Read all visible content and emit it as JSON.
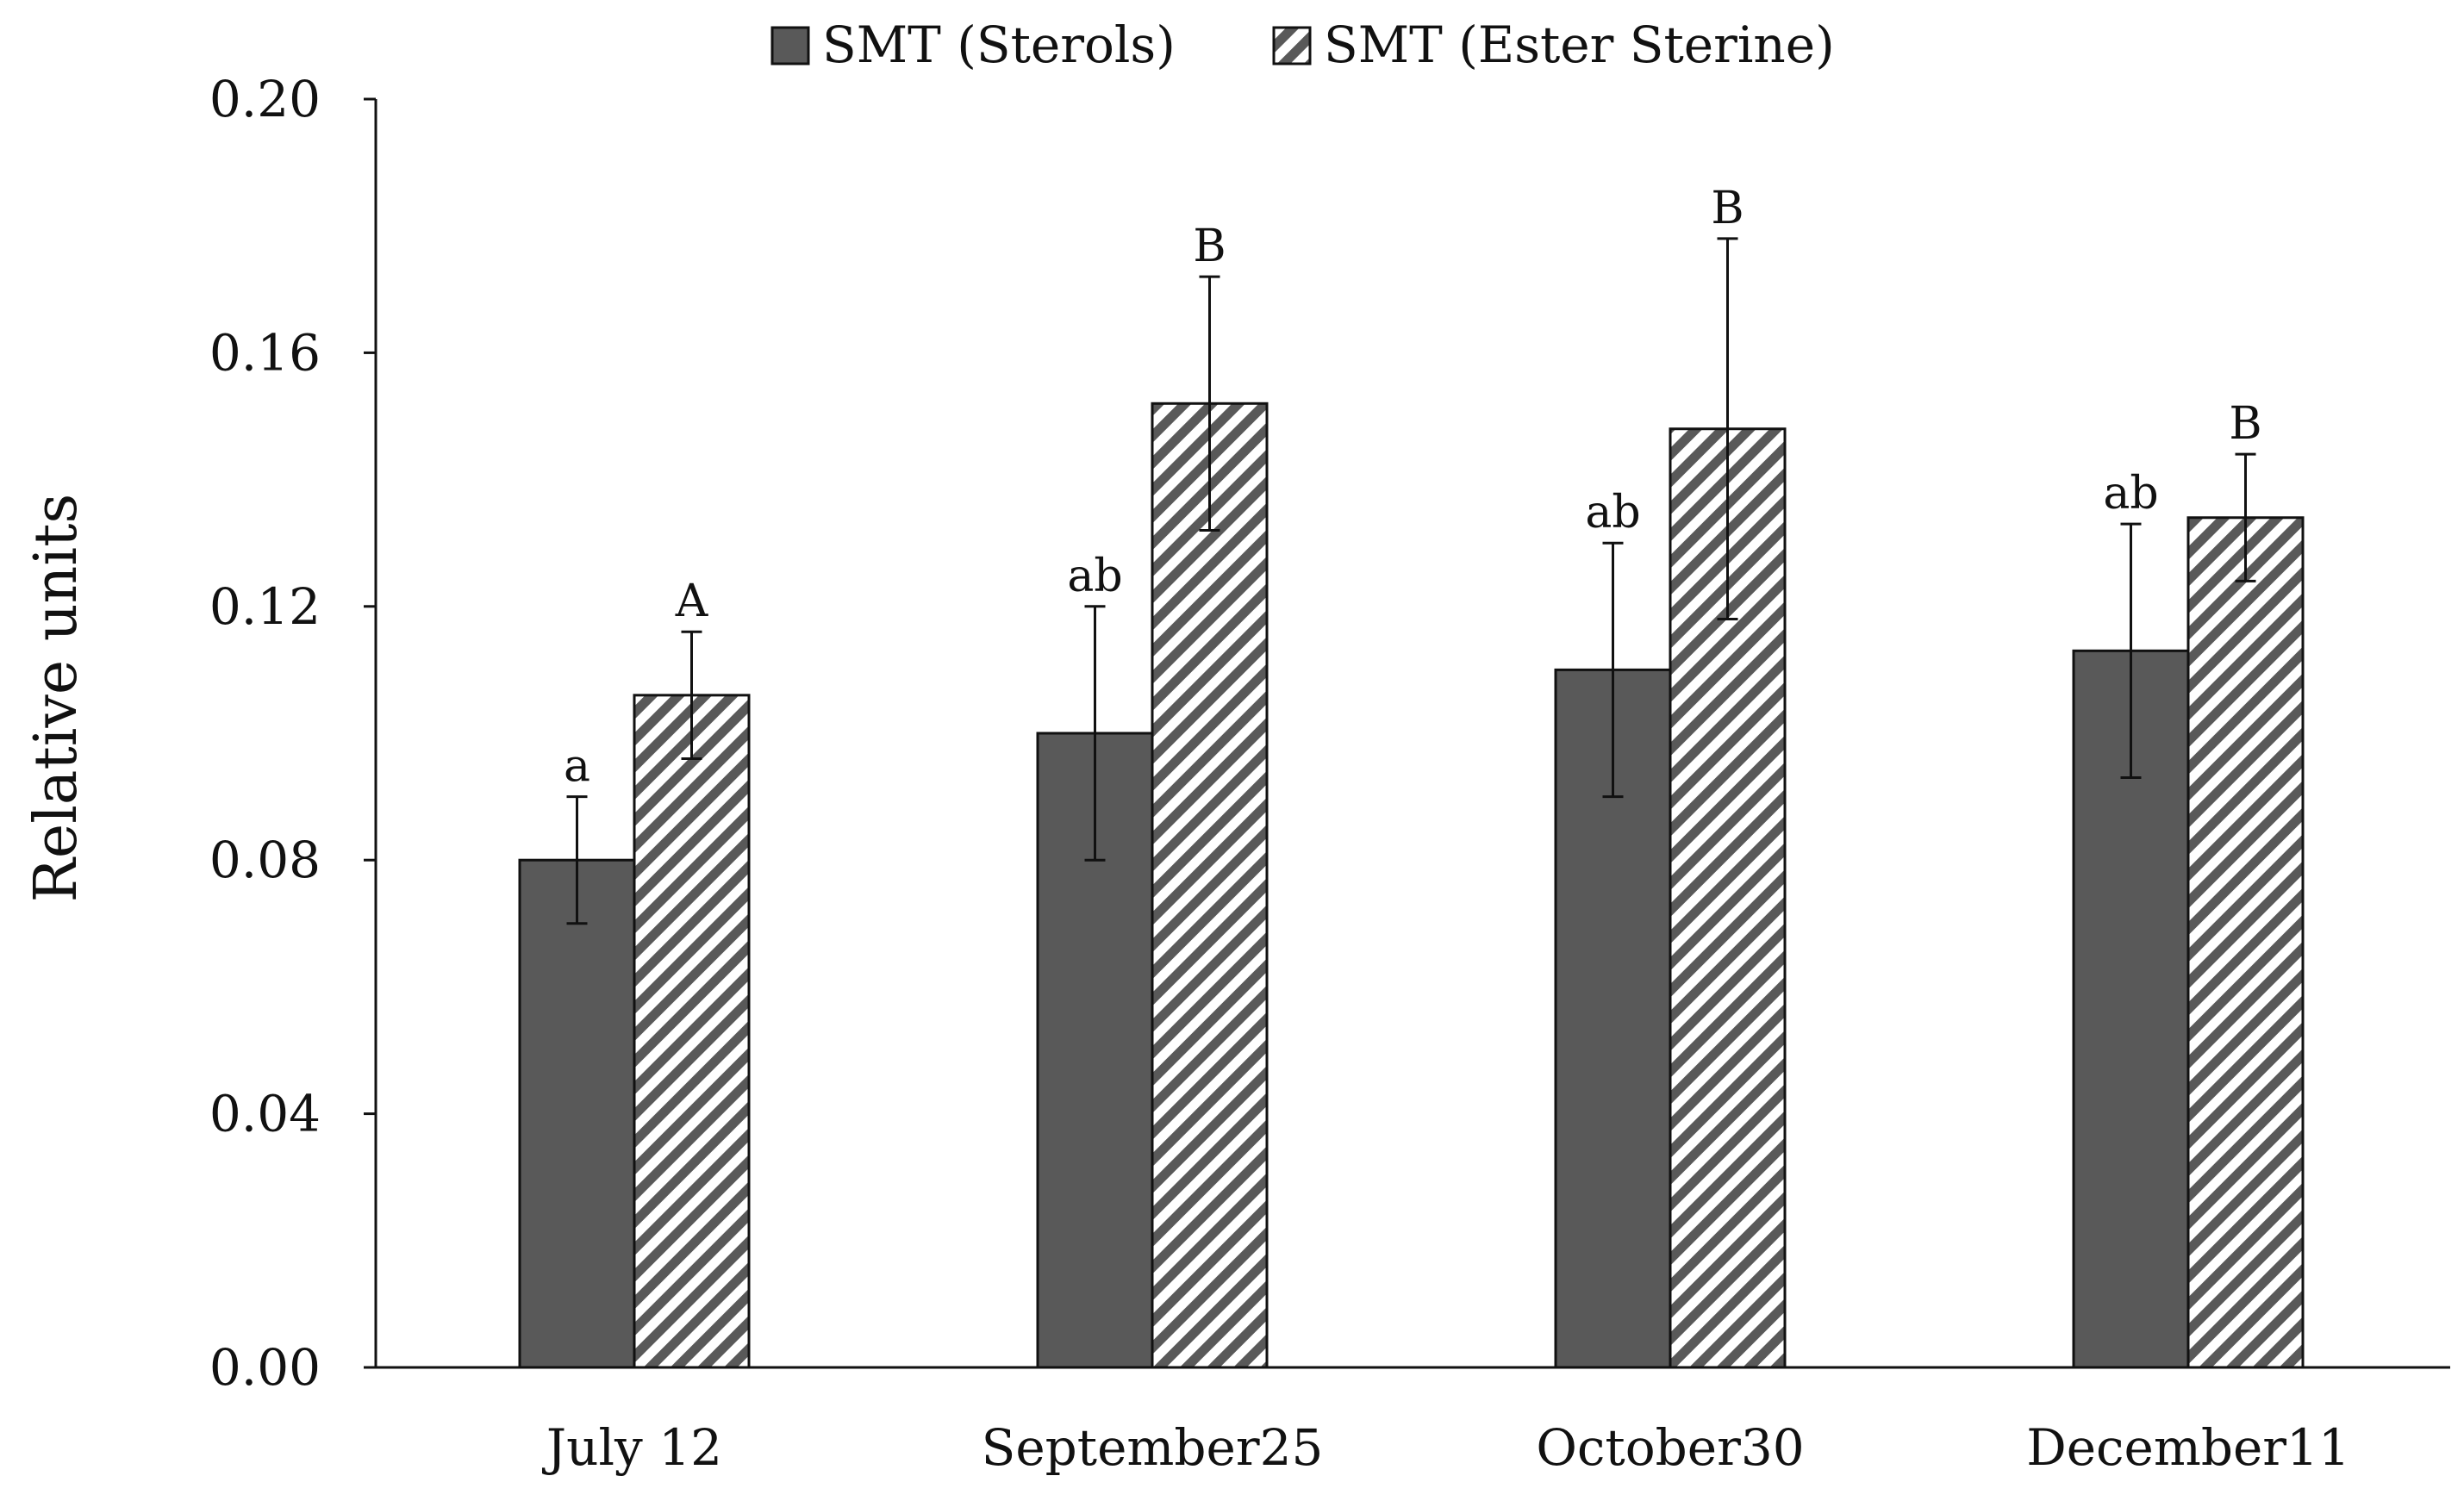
{
  "chart_data": {
    "type": "bar",
    "title": "",
    "xlabel": "",
    "ylabel": "Relative units",
    "ylim": [
      0,
      0.2
    ],
    "yticks": [
      "0.00",
      "0.04",
      "0.08",
      "0.12",
      "0.16",
      "0.20"
    ],
    "ytick_values": [
      0,
      0.04,
      0.08,
      0.12,
      0.16,
      0.2
    ],
    "categories": [
      "July 12",
      "September25",
      "October30",
      "December11"
    ],
    "legend_position": "top-center",
    "grid": false,
    "series": [
      {
        "name": "SMT (Sterols)",
        "pattern": "solid",
        "color": "#595959",
        "values": [
          0.08,
          0.1,
          0.11,
          0.113
        ],
        "errors": [
          0.01,
          0.02,
          0.02,
          0.02
        ],
        "labels": [
          "a",
          "ab",
          "ab",
          "ab"
        ]
      },
      {
        "name": "SMT (Ester Sterine)",
        "pattern": "diagonal-hatch",
        "color": "#595959",
        "values": [
          0.106,
          0.152,
          0.148,
          0.134
        ],
        "errors": [
          0.01,
          0.02,
          0.03,
          0.01
        ],
        "labels": [
          "A",
          "B",
          "B",
          "B"
        ]
      }
    ]
  }
}
